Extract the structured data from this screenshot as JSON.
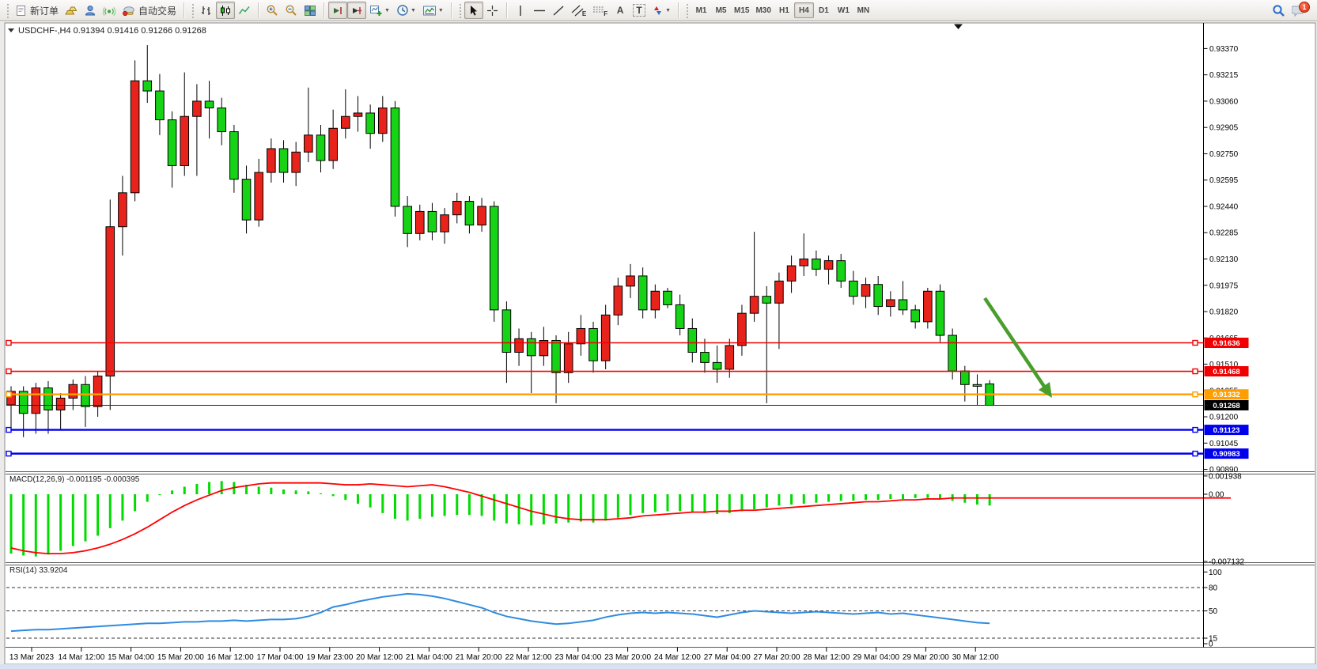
{
  "toolbar": {
    "new_order": "新订单",
    "autotrade": "自动交易",
    "timeframes": [
      "M1",
      "M5",
      "M15",
      "M30",
      "H1",
      "H4",
      "D1",
      "W1",
      "MN"
    ],
    "active_timeframe": "H4",
    "notification_count": "1",
    "letter_a": "A",
    "letter_t": "T",
    "letter_e": "E",
    "letter_f": "F"
  },
  "chart": {
    "symbol_period": "USDCHF-,H4",
    "open": "0.91394",
    "high": "0.91416",
    "low": "0.91266",
    "close": "0.91268",
    "price_ticks": [
      "0.93370",
      "0.93215",
      "0.93060",
      "0.92905",
      "0.92750",
      "0.92595",
      "0.92440",
      "0.92285",
      "0.92130",
      "0.91975",
      "0.91820",
      "0.91665",
      "0.91510",
      "0.91355",
      "0.91200",
      "0.91045",
      "0.90890"
    ],
    "time_ticks": [
      "13 Mar 2023",
      "14 Mar 12:00",
      "15 Mar 04:00",
      "15 Mar 20:00",
      "16 Mar 12:00",
      "17 Mar 04:00",
      "19 Mar 23:00",
      "20 Mar 12:00",
      "21 Mar 04:00",
      "21 Mar 20:00",
      "22 Mar 12:00",
      "23 Mar 04:00",
      "23 Mar 20:00",
      "24 Mar 12:00",
      "27 Mar 04:00",
      "27 Mar 20:00",
      "28 Mar 12:00",
      "29 Mar 04:00",
      "29 Mar 20:00",
      "30 Mar 12:00"
    ],
    "hlines": [
      {
        "price": 0.91636,
        "label": "0.91636",
        "color": "#f00000",
        "width": 1.6
      },
      {
        "price": 0.91468,
        "label": "0.91468",
        "color": "#f00000",
        "width": 1.6
      },
      {
        "price": 0.91332,
        "label": "0.91332",
        "color": "#ff9e00",
        "width": 2.4
      },
      {
        "price": 0.91123,
        "label": "0.91123",
        "color": "#0000ee",
        "width": 2.4
      },
      {
        "price": 0.90983,
        "label": "0.90983",
        "color": "#0000ee",
        "width": 2.4
      }
    ],
    "current_price": {
      "value": 0.91268,
      "label": "0.91268",
      "color": "#000000"
    }
  },
  "macd": {
    "title": "MACD(12,26,9)",
    "value_main": "-0.001195",
    "value_signal": "-0.000395",
    "axis": [
      "0.001938",
      "0.00",
      "-0.007132"
    ]
  },
  "rsi": {
    "title": "RSI(14)",
    "value": "33.9204",
    "axis": [
      "100",
      "80",
      "50",
      "15",
      "0"
    ],
    "levels": [
      80,
      50,
      15
    ]
  },
  "chart_data": {
    "type": "candlestick",
    "symbol": "USDCHF",
    "timeframe": "H4",
    "price_range": [
      0.90885,
      0.93495
    ],
    "up_color": "#e8231b",
    "down_color": "#16d316",
    "candles": [
      [
        0.9127,
        0.9138,
        0.9113,
        0.9135
      ],
      [
        0.9135,
        0.9138,
        0.9108,
        0.9122
      ],
      [
        0.9122,
        0.914,
        0.911,
        0.9137
      ],
      [
        0.9137,
        0.9141,
        0.911,
        0.9124
      ],
      [
        0.9124,
        0.9134,
        0.9112,
        0.9131
      ],
      [
        0.9131,
        0.9142,
        0.9124,
        0.9139
      ],
      [
        0.9139,
        0.9144,
        0.9114,
        0.9126
      ],
      [
        0.9126,
        0.9147,
        0.912,
        0.9144
      ],
      [
        0.9144,
        0.9248,
        0.9124,
        0.9232
      ],
      [
        0.9232,
        0.9262,
        0.9215,
        0.9252
      ],
      [
        0.9252,
        0.933,
        0.9247,
        0.9318
      ],
      [
        0.9318,
        0.9339,
        0.9305,
        0.9312
      ],
      [
        0.9312,
        0.9322,
        0.9286,
        0.9295
      ],
      [
        0.9295,
        0.93,
        0.9255,
        0.9268
      ],
      [
        0.9268,
        0.9323,
        0.9262,
        0.9297
      ],
      [
        0.9297,
        0.9316,
        0.9262,
        0.9306
      ],
      [
        0.9306,
        0.9318,
        0.9284,
        0.9302
      ],
      [
        0.9302,
        0.9308,
        0.928,
        0.9288
      ],
      [
        0.9288,
        0.9292,
        0.9252,
        0.926
      ],
      [
        0.926,
        0.9268,
        0.9228,
        0.9236
      ],
      [
        0.9236,
        0.9272,
        0.9232,
        0.9264
      ],
      [
        0.9264,
        0.9284,
        0.9258,
        0.9278
      ],
      [
        0.9278,
        0.9283,
        0.9258,
        0.9264
      ],
      [
        0.9264,
        0.9282,
        0.9256,
        0.9276
      ],
      [
        0.9276,
        0.9314,
        0.927,
        0.9286
      ],
      [
        0.9286,
        0.9292,
        0.9264,
        0.9271
      ],
      [
        0.9271,
        0.9301,
        0.9266,
        0.929
      ],
      [
        0.929,
        0.9313,
        0.9284,
        0.9297
      ],
      [
        0.9297,
        0.9309,
        0.9288,
        0.9299
      ],
      [
        0.9299,
        0.9304,
        0.9278,
        0.9287
      ],
      [
        0.9287,
        0.9309,
        0.9282,
        0.9302
      ],
      [
        0.9302,
        0.9306,
        0.9238,
        0.9244
      ],
      [
        0.9244,
        0.925,
        0.922,
        0.9228
      ],
      [
        0.9228,
        0.9245,
        0.9224,
        0.9241
      ],
      [
        0.9241,
        0.9246,
        0.9224,
        0.9229
      ],
      [
        0.9229,
        0.9243,
        0.9222,
        0.9239
      ],
      [
        0.9239,
        0.9252,
        0.9234,
        0.9247
      ],
      [
        0.9247,
        0.925,
        0.9228,
        0.9233
      ],
      [
        0.9233,
        0.9249,
        0.9229,
        0.9244
      ],
      [
        0.9244,
        0.9247,
        0.9176,
        0.9183
      ],
      [
        0.9183,
        0.9188,
        0.914,
        0.9158
      ],
      [
        0.9158,
        0.9172,
        0.915,
        0.9166
      ],
      [
        0.9166,
        0.917,
        0.9134,
        0.9156
      ],
      [
        0.9156,
        0.9173,
        0.915,
        0.9165
      ],
      [
        0.9165,
        0.9168,
        0.9128,
        0.9146
      ],
      [
        0.9146,
        0.917,
        0.914,
        0.9163
      ],
      [
        0.9163,
        0.918,
        0.9156,
        0.9172
      ],
      [
        0.9172,
        0.9176,
        0.9146,
        0.9153
      ],
      [
        0.9153,
        0.9186,
        0.9148,
        0.918
      ],
      [
        0.918,
        0.9202,
        0.9174,
        0.9197
      ],
      [
        0.9197,
        0.921,
        0.919,
        0.9203
      ],
      [
        0.9203,
        0.9208,
        0.9178,
        0.9183
      ],
      [
        0.9183,
        0.9198,
        0.9178,
        0.9194
      ],
      [
        0.9194,
        0.9196,
        0.9184,
        0.9186
      ],
      [
        0.9186,
        0.9192,
        0.9168,
        0.9172
      ],
      [
        0.9172,
        0.9178,
        0.9152,
        0.9158
      ],
      [
        0.9158,
        0.9166,
        0.9146,
        0.9152
      ],
      [
        0.9152,
        0.9162,
        0.914,
        0.9148
      ],
      [
        0.9148,
        0.9166,
        0.9143,
        0.9162
      ],
      [
        0.9162,
        0.9186,
        0.9156,
        0.9181
      ],
      [
        0.9181,
        0.9229,
        0.9176,
        0.9191
      ],
      [
        0.9191,
        0.9197,
        0.9128,
        0.9187
      ],
      [
        0.9187,
        0.9205,
        0.916,
        0.92
      ],
      [
        0.92,
        0.9215,
        0.9193,
        0.9209
      ],
      [
        0.9209,
        0.9228,
        0.9203,
        0.9213
      ],
      [
        0.9213,
        0.9218,
        0.9203,
        0.9207
      ],
      [
        0.9207,
        0.9215,
        0.9198,
        0.9212
      ],
      [
        0.9212,
        0.9216,
        0.9196,
        0.92
      ],
      [
        0.92,
        0.9206,
        0.9186,
        0.9191
      ],
      [
        0.9191,
        0.9202,
        0.9184,
        0.9198
      ],
      [
        0.9198,
        0.9203,
        0.918,
        0.9185
      ],
      [
        0.9185,
        0.9194,
        0.9179,
        0.9189
      ],
      [
        0.9189,
        0.92,
        0.918,
        0.9183
      ],
      [
        0.9183,
        0.9186,
        0.9172,
        0.9176
      ],
      [
        0.9176,
        0.9196,
        0.9172,
        0.9194
      ],
      [
        0.9194,
        0.9198,
        0.9164,
        0.9168
      ],
      [
        0.9168,
        0.9172,
        0.9142,
        0.9147
      ],
      [
        0.9147,
        0.915,
        0.9129,
        0.9139
      ],
      [
        0.9139,
        0.9145,
        0.9127,
        0.9138
      ],
      [
        0.91394,
        0.91416,
        0.91266,
        0.91268
      ]
    ],
    "macd": {
      "hist_color": "#00dc00",
      "signal_color": "#ff0000",
      "range": [
        -0.007132,
        0.001938
      ],
      "histogram": [
        -0.0063,
        -0.0065,
        -0.0066,
        -0.0064,
        -0.006,
        -0.0055,
        -0.005,
        -0.0044,
        -0.0036,
        -0.0028,
        -0.0018,
        -0.0008,
        -0.0001,
        0.0004,
        0.0008,
        0.0011,
        0.0013,
        0.0014,
        0.0013,
        0.001,
        0.0008,
        0.0007,
        0.0005,
        0.0004,
        0.0003,
        0.0001,
        -0.0002,
        -0.0006,
        -0.001,
        -0.0014,
        -0.002,
        -0.0026,
        -0.0028,
        -0.0026,
        -0.0024,
        -0.0023,
        -0.0022,
        -0.0022,
        -0.0023,
        -0.0028,
        -0.0031,
        -0.0032,
        -0.0033,
        -0.0032,
        -0.0031,
        -0.003,
        -0.0029,
        -0.003,
        -0.0028,
        -0.0025,
        -0.0022,
        -0.002,
        -0.0019,
        -0.0018,
        -0.0018,
        -0.0019,
        -0.002,
        -0.0021,
        -0.002,
        -0.0018,
        -0.0016,
        -0.0014,
        -0.0012,
        -0.0011,
        -0.001,
        -0.0009,
        -0.0008,
        -0.0007,
        -0.0007,
        -0.0006,
        -0.0006,
        -0.0005,
        -0.0005,
        -0.0004,
        -0.0004,
        -0.0005,
        -0.0007,
        -0.0009,
        -0.0011,
        -0.0012
      ],
      "signal": [
        -0.0057,
        -0.006,
        -0.0062,
        -0.0063,
        -0.0063,
        -0.0062,
        -0.006,
        -0.0057,
        -0.0053,
        -0.0048,
        -0.0042,
        -0.0035,
        -0.0027,
        -0.0019,
        -0.0012,
        -0.0006,
        -0.0001,
        0.0004,
        0.0007,
        0.0009,
        0.0011,
        0.0012,
        0.0012,
        0.0012,
        0.0012,
        0.0012,
        0.0011,
        0.001,
        0.001,
        0.0011,
        0.001,
        0.0009,
        0.0008,
        0.0009,
        0.001,
        0.0008,
        0.0005,
        0.0002,
        -0.0002,
        -0.0006,
        -0.001,
        -0.0014,
        -0.0018,
        -0.0021,
        -0.0024,
        -0.0026,
        -0.0027,
        -0.0027,
        -0.0027,
        -0.0026,
        -0.0025,
        -0.0023,
        -0.0022,
        -0.0021,
        -0.002,
        -0.0019,
        -0.0019,
        -0.0018,
        -0.0018,
        -0.0017,
        -0.0017,
        -0.0016,
        -0.0015,
        -0.0014,
        -0.0013,
        -0.0012,
        -0.0011,
        -0.001,
        -0.0009,
        -0.0008,
        -0.0008,
        -0.0007,
        -0.0006,
        -0.0006,
        -0.0005,
        -0.0005,
        -0.0004,
        -0.0004,
        -0.0004,
        -0.0004
      ]
    },
    "rsi": {
      "color": "#2f8be0",
      "range": [
        0,
        100
      ],
      "levels": [
        80,
        50,
        15
      ],
      "values": [
        24,
        25,
        26,
        26,
        27,
        28,
        29,
        30,
        31,
        32,
        33,
        34,
        34,
        35,
        36,
        36,
        37,
        37,
        38,
        37,
        38,
        39,
        39,
        40,
        43,
        48,
        55,
        58,
        62,
        65,
        68,
        70,
        72,
        71,
        69,
        66,
        62,
        58,
        54,
        48,
        43,
        40,
        37,
        35,
        33,
        34,
        36,
        38,
        42,
        45,
        47,
        48,
        47,
        48,
        47,
        46,
        44,
        42,
        45,
        48,
        50,
        49,
        48,
        47,
        48,
        49,
        48,
        47,
        46,
        47,
        48,
        46,
        47,
        45,
        43,
        41,
        39,
        37,
        35,
        34
      ]
    },
    "arrow": {
      "color": "#4a9e2c",
      "from": [
        1245,
        377
      ],
      "to": [
        1321,
        490
      ],
      "head": [
        [
          1330,
          503
        ],
        [
          1313,
          493
        ],
        [
          1327,
          483
        ]
      ]
    }
  }
}
